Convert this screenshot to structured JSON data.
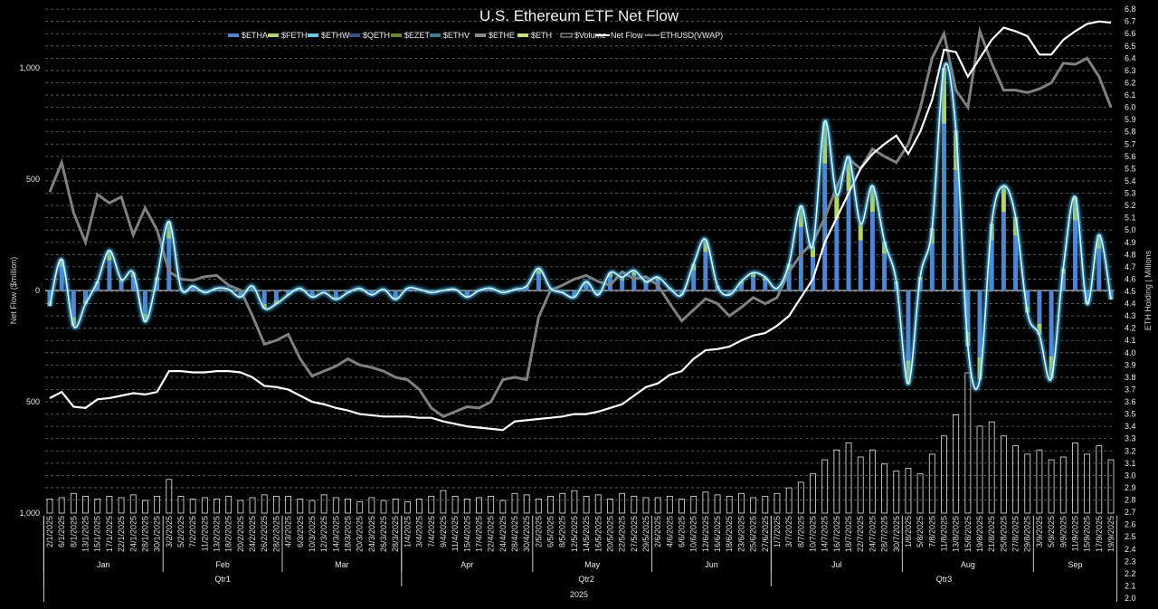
{
  "chart_data": {
    "type": "bar",
    "title": "U.S. Ethereum ETF Net Flow",
    "ylabel": "Net Flow ($million)",
    "y2label": "ETH Holding | Millions",
    "ylim": [
      -1000,
      1000
    ],
    "y2lim": [
      2.0,
      6.8
    ],
    "y_ticks": [
      {
        "value": 1000,
        "label": "1,000",
        "color": "#e8e8e8"
      },
      {
        "value": 500,
        "label": "500",
        "color": "#e8e8e8"
      },
      {
        "value": 0,
        "label": "0",
        "color": "#e8e8e8"
      },
      {
        "value": -500,
        "label": "500",
        "color": "#d02020"
      },
      {
        "value": -1000,
        "label": "1,000",
        "color": "#d02020"
      }
    ],
    "y2_ticks": [
      "2.0",
      "2.1",
      "2.2",
      "2.3",
      "2.4",
      "2.5",
      "2.6",
      "2.7",
      "2.8",
      "2.9",
      "3.0",
      "3.1",
      "3.2",
      "3.3",
      "3.4",
      "3.5",
      "3.6",
      "3.7",
      "3.8",
      "3.9",
      "4.0",
      "4.1",
      "4.2",
      "4.3",
      "4.4",
      "4.5",
      "4.6",
      "4.7",
      "4.8",
      "4.9",
      "5.0",
      "5.1",
      "5.2",
      "5.3",
      "5.4",
      "5.5",
      "5.6",
      "5.7",
      "5.8",
      "5.9",
      "6.0",
      "6.1",
      "6.2",
      "6.3",
      "6.4",
      "6.5",
      "6.6",
      "6.7",
      "6.8"
    ],
    "legend": [
      {
        "label": "$ETHA",
        "color": "#4f86cf",
        "kind": "box"
      },
      {
        "label": "$FETH",
        "color": "#b4d66a",
        "kind": "box"
      },
      {
        "label": "$ETHW",
        "color": "#6cc4e6",
        "kind": "box"
      },
      {
        "label": "$QETH",
        "color": "#34548a",
        "kind": "box"
      },
      {
        "label": "$EZET",
        "color": "#6a8a38",
        "kind": "box"
      },
      {
        "label": "$ETHV",
        "color": "#3a7c98",
        "kind": "box"
      },
      {
        "label": "$ETHE",
        "color": "#8a8a8a",
        "kind": "box"
      },
      {
        "label": "$ETH",
        "color": "#c6e27a",
        "kind": "box"
      },
      {
        "label": "$Volume",
        "color": "#dddddd",
        "kind": "outline"
      },
      {
        "label": "Net Flow",
        "color": "#ffffff",
        "kind": "line"
      },
      {
        "label": "ETHUSD(VWAP)",
        "color": "#7a7a7a",
        "kind": "line"
      }
    ],
    "legend_position": "top",
    "feth_share_of_bar": 0.25,
    "months": [
      {
        "label": "Jan",
        "count": 10
      },
      {
        "label": "Feb",
        "count": 10
      },
      {
        "label": "Mar",
        "count": 10
      },
      {
        "label": "Apr",
        "count": 11
      },
      {
        "label": "May",
        "count": 10
      },
      {
        "label": "Jun",
        "count": 10
      },
      {
        "label": "Jul",
        "count": 11
      },
      {
        "label": "Aug",
        "count": 11
      },
      {
        "label": "Sep",
        "count": 7
      }
    ],
    "quarters": [
      {
        "label": "Qtr1",
        "months": 3
      },
      {
        "label": "Qtr2",
        "months": 3
      },
      {
        "label": "Qtr3",
        "months": 3
      }
    ],
    "year": "2025",
    "dates": [
      "2/1/2025",
      "6/1/2025",
      "8/1/2025",
      "13/1/2025",
      "15/1/2025",
      "17/1/2025",
      "22/1/2025",
      "24/1/2025",
      "28/1/2025",
      "30/1/2025",
      "3/2/2025",
      "5/2/2025",
      "7/2/2025",
      "11/2/2025",
      "13/2/2025",
      "18/2/2025",
      "20/2/2025",
      "24/2/2025",
      "26/2/2025",
      "28/2/2025",
      "4/3/2025",
      "6/3/2025",
      "10/3/2025",
      "12/3/2025",
      "14/3/2025",
      "18/3/2025",
      "20/3/2025",
      "24/3/2025",
      "26/3/2025",
      "28/3/2025",
      "1/4/2025",
      "3/4/2025",
      "7/4/2025",
      "9/4/2025",
      "11/4/2025",
      "15/4/2025",
      "17/4/2025",
      "22/4/2025",
      "24/4/2025",
      "28/4/2025",
      "30/4/2025",
      "2/5/2025",
      "6/5/2025",
      "8/5/2025",
      "12/5/2025",
      "14/5/2025",
      "16/5/2025",
      "20/5/2025",
      "22/5/2025",
      "27/5/2025",
      "29/5/2025",
      "2/6/2025",
      "4/6/2025",
      "6/6/2025",
      "10/6/2025",
      "12/6/2025",
      "16/6/2025",
      "18/6/2025",
      "23/6/2025",
      "25/6/2025",
      "27/6/2025",
      "1/7/2025",
      "3/7/2025",
      "8/7/2025",
      "10/7/2025",
      "14/7/2025",
      "16/7/2025",
      "18/7/2025",
      "22/7/2025",
      "24/7/2025",
      "28/7/2025",
      "30/7/2025",
      "1/8/2025",
      "5/8/2025",
      "7/8/2025",
      "11/8/2025",
      "13/8/2025",
      "15/8/2025",
      "19/8/2025",
      "21/8/2025",
      "25/8/2025",
      "27/8/2025",
      "29/8/2025",
      "3/9/2025",
      "5/9/2025",
      "9/9/2025",
      "11/9/2025",
      "15/9/2025",
      "17/9/2025",
      "19/9/2025"
    ],
    "series": [
      {
        "name": "Net Flow ($M)",
        "axis": "left",
        "values": [
          -70,
          140,
          -160,
          -60,
          40,
          180,
          50,
          80,
          -140,
          60,
          310,
          10,
          20,
          -10,
          10,
          5,
          -30,
          20,
          -80,
          -60,
          -20,
          10,
          -30,
          -10,
          -40,
          -10,
          10,
          -20,
          5,
          -40,
          10,
          5,
          -10,
          0,
          5,
          -30,
          0,
          10,
          -10,
          5,
          20,
          100,
          10,
          -10,
          -30,
          40,
          -20,
          80,
          60,
          90,
          40,
          60,
          10,
          -20,
          120,
          230,
          20,
          -20,
          40,
          80,
          60,
          10,
          120,
          380,
          200,
          760,
          430,
          600,
          300,
          470,
          220,
          40,
          -420,
          60,
          280,
          1000,
          720,
          -250,
          -400,
          300,
          470,
          330,
          -100,
          -200,
          -395,
          100,
          420,
          -60,
          250,
          -40
        ]
      },
      {
        "name": "ETH Holding (M)",
        "axis": "right",
        "values": [
          3.63,
          3.68,
          3.56,
          3.55,
          3.62,
          3.63,
          3.65,
          3.67,
          3.66,
          3.68,
          3.85,
          3.85,
          3.84,
          3.84,
          3.85,
          3.85,
          3.84,
          3.8,
          3.73,
          3.72,
          3.7,
          3.65,
          3.6,
          3.58,
          3.55,
          3.53,
          3.5,
          3.49,
          3.48,
          3.48,
          3.48,
          3.47,
          3.47,
          3.44,
          3.42,
          3.4,
          3.39,
          3.38,
          3.37,
          3.44,
          3.45,
          3.46,
          3.47,
          3.48,
          3.5,
          3.5,
          3.52,
          3.55,
          3.58,
          3.65,
          3.72,
          3.75,
          3.82,
          3.85,
          3.95,
          4.02,
          4.03,
          4.05,
          4.1,
          4.14,
          4.16,
          4.22,
          4.3,
          4.45,
          4.6,
          4.9,
          5.1,
          5.3,
          5.5,
          5.62,
          5.7,
          5.77,
          5.62,
          5.8,
          6.06,
          6.47,
          6.45,
          6.25,
          6.4,
          6.55,
          6.65,
          6.62,
          6.58,
          6.43,
          6.43,
          6.55,
          6.62,
          6.68,
          6.7,
          6.69
        ]
      },
      {
        "name": "ETHUSD(VWAP) (relative, right-axis scale)",
        "axis": "right",
        "values": [
          5.31,
          5.55,
          5.14,
          4.9,
          5.29,
          5.22,
          5.27,
          4.96,
          5.18,
          5.0,
          4.66,
          4.6,
          4.59,
          4.62,
          4.63,
          4.55,
          4.51,
          4.3,
          4.07,
          4.1,
          4.15,
          3.95,
          3.81,
          3.85,
          3.89,
          3.95,
          3.9,
          3.88,
          3.85,
          3.8,
          3.78,
          3.7,
          3.55,
          3.48,
          3.52,
          3.56,
          3.55,
          3.6,
          3.78,
          3.8,
          3.78,
          4.29,
          4.51,
          4.55,
          4.6,
          4.63,
          4.58,
          4.55,
          4.66,
          4.6,
          4.62,
          4.55,
          4.4,
          4.26,
          4.35,
          4.44,
          4.4,
          4.3,
          4.37,
          4.45,
          4.4,
          4.45,
          4.66,
          4.8,
          4.9,
          5.1,
          5.35,
          5.58,
          5.5,
          5.66,
          5.6,
          5.55,
          5.7,
          5.99,
          6.4,
          6.6,
          6.14,
          6.0,
          6.62,
          6.36,
          6.14,
          6.14,
          6.12,
          6.15,
          6.2,
          6.36,
          6.35,
          6.4,
          6.25,
          6.0
        ]
      },
      {
        "name": "$Volume (relative)",
        "axis": "none",
        "values": [
          10,
          11,
          14,
          12,
          10,
          12,
          11,
          13,
          9,
          12,
          24,
          12,
          10,
          11,
          10,
          12,
          9,
          11,
          13,
          12,
          12,
          10,
          9,
          13,
          11,
          10,
          8,
          11,
          9,
          10,
          8,
          10,
          12,
          16,
          12,
          10,
          11,
          12,
          9,
          14,
          13,
          10,
          12,
          14,
          16,
          12,
          13,
          10,
          14,
          12,
          11,
          11,
          12,
          10,
          12,
          15,
          13,
          12,
          14,
          11,
          12,
          14,
          18,
          22,
          28,
          38,
          45,
          50,
          40,
          45,
          35,
          30,
          32,
          28,
          42,
          55,
          70,
          100,
          62,
          65,
          55,
          48,
          42,
          45,
          38,
          40,
          50,
          42,
          48,
          38
        ]
      }
    ]
  }
}
